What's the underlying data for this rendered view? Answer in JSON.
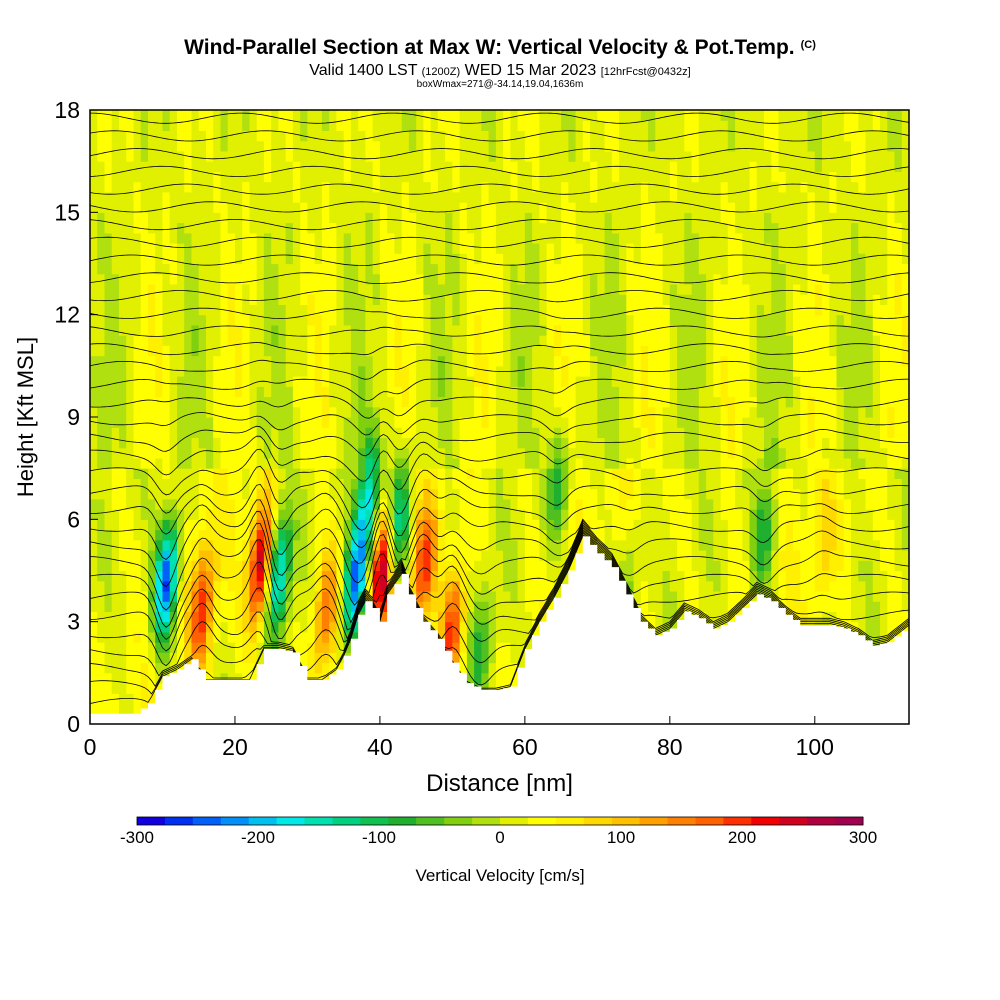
{
  "title": {
    "main": "Wind-Parallel Section at Max W: Vertical Velocity & Pot.Temp.",
    "copyright": "(C)",
    "valid_prefix": "Valid 1400 LST",
    "valid_utc": "(1200Z)",
    "valid_date": "WED 15 Mar 2023",
    "forecast": "[12hrFcst@0432z]",
    "box_info": "boxWmax=271@-34.14,19.04,1636m"
  },
  "colorbar": {
    "label": "Vertical Velocity [cm/s]",
    "ticks": [
      "-300",
      "-200",
      "-100",
      "0",
      "100",
      "200",
      "300"
    ],
    "min": -300,
    "max": 300,
    "colors": [
      "#1000e0",
      "#0030f0",
      "#0060f8",
      "#0090f8",
      "#00c0f0",
      "#00e8e8",
      "#00e0b0",
      "#00d080",
      "#10c050",
      "#20b030",
      "#50c020",
      "#80d010",
      "#b0e010",
      "#e0f000",
      "#ffff00",
      "#fff000",
      "#ffd800",
      "#ffc000",
      "#ffa000",
      "#ff8000",
      "#ff6000",
      "#ff3000",
      "#f00000",
      "#d00020",
      "#b00040",
      "#a00050"
    ]
  },
  "chart_data": {
    "type": "heatmap",
    "title": "Wind-Parallel Section at Max W: Vertical Velocity & Pot.Temp.",
    "xlabel": "Distance [nm]",
    "ylabel": "Height [Kft MSL]",
    "xlim": [
      0,
      113
    ],
    "ylim": [
      0,
      18
    ],
    "xticks": [
      0,
      20,
      40,
      60,
      80,
      100
    ],
    "yticks": [
      0,
      3,
      6,
      9,
      12,
      15,
      18
    ],
    "terrain": {
      "x": [
        0,
        6,
        8,
        10,
        12,
        14,
        16,
        18,
        20,
        22,
        24,
        26,
        28,
        30,
        32,
        34,
        35,
        36,
        37,
        38,
        39,
        40,
        41,
        42,
        43,
        44,
        46,
        48,
        50,
        52,
        54,
        56,
        58,
        60,
        62,
        64,
        66,
        68,
        70,
        72,
        74,
        76,
        78,
        80,
        82,
        84,
        86,
        88,
        90,
        92,
        94,
        96,
        98,
        100,
        102,
        104,
        106,
        108,
        110,
        113
      ],
      "h": [
        0.3,
        0.3,
        0.6,
        1.4,
        1.6,
        1.9,
        1.3,
        1.3,
        1.3,
        1.3,
        2.2,
        2.2,
        2.1,
        1.3,
        1.3,
        1.6,
        2.0,
        2.5,
        3.2,
        3.6,
        3.4,
        3.0,
        3.8,
        4.1,
        4.4,
        3.8,
        3.0,
        2.5,
        1.8,
        1.2,
        1.0,
        1.0,
        1.1,
        2.2,
        3.0,
        3.7,
        4.5,
        5.5,
        5.0,
        4.6,
        3.8,
        3.0,
        2.6,
        2.8,
        3.3,
        3.1,
        2.8,
        3.0,
        3.4,
        3.8,
        3.6,
        3.2,
        2.9,
        2.9,
        2.9,
        2.8,
        2.6,
        2.3,
        2.4,
        2.9
      ]
    },
    "vertical_velocity_features": [
      {
        "x": 10.5,
        "z": 4.2,
        "w": -280
      },
      {
        "x": 15.5,
        "z": 3.4,
        "w": 170
      },
      {
        "x": 23.5,
        "z": 4.6,
        "w": 250
      },
      {
        "x": 26.0,
        "z": 4.4,
        "w": -210
      },
      {
        "x": 32.5,
        "z": 3.3,
        "w": 140
      },
      {
        "x": 36.5,
        "z": 4.0,
        "w": -250
      },
      {
        "x": 38.5,
        "z": 6.6,
        "w": -190
      },
      {
        "x": 40.2,
        "z": 4.4,
        "w": 240
      },
      {
        "x": 42.5,
        "z": 5.8,
        "w": -180
      },
      {
        "x": 46.0,
        "z": 4.6,
        "w": 170
      },
      {
        "x": 50.0,
        "z": 2.8,
        "w": 180
      },
      {
        "x": 54.0,
        "z": 2.2,
        "w": -90
      },
      {
        "x": 64.5,
        "z": 7.0,
        "w": -90
      },
      {
        "x": 74.5,
        "z": 4.2,
        "w": -60
      },
      {
        "x": 93.0,
        "z": 5.5,
        "w": -110
      },
      {
        "x": 101.0,
        "z": 5.0,
        "w": 50
      }
    ],
    "colorbar_label": "Vertical Velocity [cm/s]",
    "colorbar_range": [
      -300,
      300
    ]
  }
}
